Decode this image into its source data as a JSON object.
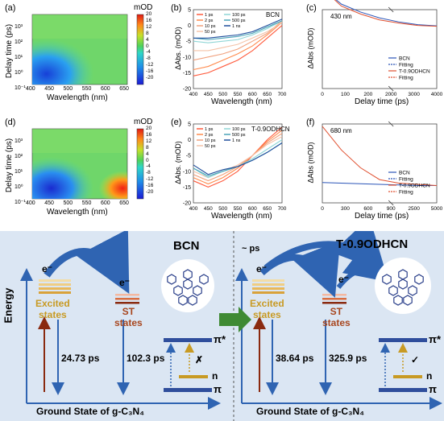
{
  "panels": {
    "a": {
      "label": "(a)",
      "xlabel": "Wavelength (nm)",
      "ylabel": "Delay time (ps)",
      "xticks": [
        "400",
        "450",
        "500",
        "550",
        "600",
        "650"
      ],
      "yticks": [
        "10³",
        "10²",
        "10¹",
        "10⁰",
        "10⁻¹"
      ],
      "cbar_title": "mOD",
      "cbar_ticks": [
        "20",
        "16",
        "12",
        "8",
        "4",
        "0",
        "-4",
        "-8",
        "-12",
        "-16",
        "-20"
      ]
    },
    "b": {
      "label": "(b)",
      "tag": "BCN",
      "xlabel": "Wavelength (nm)",
      "ylabel": "ΔAbs. (mOD)",
      "xticks": [
        "400",
        "450",
        "500",
        "550",
        "600",
        "650",
        "700"
      ],
      "yticks": [
        "5",
        "0",
        "-5",
        "-10",
        "-15",
        "-20"
      ],
      "legend": [
        "1 ps",
        "2 ps",
        "10 ps",
        "50 ps",
        "100 ps",
        "500 ps",
        "1 ns"
      ]
    },
    "c": {
      "label": "(c)",
      "tag": "430 nm",
      "xlabel": "Delay time (ps)",
      "ylabel": "ΔAbs (mOD)",
      "xticks": [
        "0",
        "100",
        "200",
        "2000",
        "3000",
        "4000"
      ],
      "legend": [
        "BCN",
        "Fitting",
        "T-0.9ODHCN",
        "Fitting"
      ]
    },
    "d": {
      "label": "(d)",
      "xlabel": "Wavelength (nm)",
      "ylabel": "Delay time (ps)",
      "xticks": [
        "400",
        "450",
        "500",
        "550",
        "600",
        "650"
      ],
      "yticks": [
        "10³",
        "10²",
        "10¹",
        "10⁰",
        "10⁻¹"
      ],
      "cbar_title": "mOD",
      "cbar_ticks": [
        "20",
        "16",
        "12",
        "8",
        "4",
        "0",
        "-4",
        "-8",
        "-12",
        "-16",
        "-20"
      ]
    },
    "e": {
      "label": "(e)",
      "tag": "T-0.9ODHCN",
      "xlabel": "Wavelength (nm)",
      "ylabel": "ΔAbs. (mOD)",
      "xticks": [
        "400",
        "450",
        "500",
        "550",
        "600",
        "650",
        "700"
      ],
      "yticks": [
        "5",
        "0",
        "-5",
        "-10",
        "-15",
        "-20"
      ],
      "legend": [
        "1 ps",
        "2 ps",
        "10 ps",
        "50 ps",
        "100 ps",
        "500 ps",
        "1 ns"
      ]
    },
    "f": {
      "label": "(f)",
      "tag": "680 nm",
      "xlabel": "Delay time (ps)",
      "ylabel": "ΔAbs (mOD)",
      "xticks": [
        "0",
        "300",
        "600",
        "900",
        "2500",
        "5000"
      ],
      "legend": [
        "BCN",
        "Fitting",
        "T-0.9ODHCN",
        "Fitting"
      ]
    }
  },
  "diagram": {
    "energy": "Energy",
    "left": {
      "title": "BCN",
      "excited": "Excited\nstates",
      "st": "ST\nstates",
      "e": "e⁻",
      "t1": "24.73 ps",
      "t2": "102.3 ps",
      "pistar": "π*",
      "n": "n",
      "pi": "π",
      "mark": "✗",
      "ground": "Ground State of g-C₃N₄"
    },
    "right": {
      "title": "T-0.9ODHCN",
      "prefix": "~ ps",
      "excited": "Excited\nstates",
      "st": "ST\nstates",
      "e": "e⁻",
      "t1": "38.64 ps",
      "t2": "325.9 ps",
      "pistar": "π*",
      "n": "n",
      "pi": "π",
      "mark": "✓",
      "ground": "Ground State of g-C₃N₄"
    }
  },
  "chart_data": [
    {
      "type": "heatmap",
      "panel": "a",
      "xlabel": "Wavelength (nm)",
      "ylabel": "Delay time (ps)",
      "x_range": [
        400,
        700
      ],
      "y_log_range": [
        0.1,
        3000
      ],
      "z_range": [
        -20,
        20
      ],
      "z_label": "mOD"
    },
    {
      "type": "line",
      "panel": "b",
      "tag": "BCN",
      "xlabel": "Wavelength (nm)",
      "ylabel": "ΔAbs. (mOD)",
      "xlim": [
        400,
        700
      ],
      "ylim": [
        -20,
        5
      ],
      "x": [
        400,
        450,
        500,
        550,
        600,
        650,
        700
      ],
      "series": [
        {
          "name": "1 ps",
          "color": "#ff5a3c",
          "values": [
            -16,
            -15,
            -13,
            -11,
            -8,
            -4,
            0
          ]
        },
        {
          "name": "2 ps",
          "color": "#ff8a4c",
          "values": [
            -14,
            -13,
            -11,
            -9,
            -6.5,
            -3,
            1
          ]
        },
        {
          "name": "10 ps",
          "color": "#f0a07c",
          "values": [
            -11,
            -10,
            -9,
            -7.5,
            -5,
            -2.5,
            1.5
          ]
        },
        {
          "name": "50 ps",
          "color": "#f4c3a8",
          "values": [
            -8,
            -8,
            -7,
            -6,
            -4,
            -2,
            1
          ]
        },
        {
          "name": "100 ps",
          "color": "#8fd6d6",
          "values": [
            -5,
            -5.5,
            -5,
            -4.5,
            -3,
            -1,
            1.5
          ]
        },
        {
          "name": "500 ps",
          "color": "#4aa3b8",
          "values": [
            -4,
            -4.5,
            -4,
            -3.5,
            -2.5,
            -0.5,
            1.5
          ]
        },
        {
          "name": "1 ns",
          "color": "#1f4e9c",
          "values": [
            -4,
            -4,
            -3.5,
            -3,
            -2,
            0,
            2
          ]
        }
      ]
    },
    {
      "type": "line",
      "panel": "c",
      "tag": "430 nm",
      "xlabel": "Delay time (ps)",
      "ylabel": "ΔAbs (mOD)",
      "series": [
        {
          "name": "BCN",
          "color": "#2b55b8",
          "x": [
            0,
            5,
            20,
            100,
            200,
            2000,
            4000
          ],
          "values": [
            -1,
            -0.6,
            -0.4,
            -0.25,
            -0.15,
            -0.08,
            -0.05
          ]
        },
        {
          "name": "T-0.9ODHCN",
          "color": "#e05030",
          "x": [
            0,
            5,
            20,
            100,
            200,
            2000,
            4000
          ],
          "values": [
            -1,
            -0.55,
            -0.35,
            -0.2,
            -0.12,
            -0.06,
            -0.04
          ]
        }
      ]
    },
    {
      "type": "heatmap",
      "panel": "d",
      "xlabel": "Wavelength (nm)",
      "ylabel": "Delay time (ps)",
      "x_range": [
        400,
        700
      ],
      "y_log_range": [
        0.1,
        3000
      ],
      "z_range": [
        -20,
        20
      ],
      "z_label": "mOD"
    },
    {
      "type": "line",
      "panel": "e",
      "tag": "T-0.9ODHCN",
      "xlabel": "Wavelength (nm)",
      "ylabel": "ΔAbs. (mOD)",
      "xlim": [
        400,
        700
      ],
      "ylim": [
        -20,
        5
      ],
      "x": [
        400,
        450,
        500,
        550,
        600,
        650,
        700
      ],
      "series": [
        {
          "name": "1 ps",
          "color": "#ff5a3c",
          "values": [
            -13,
            -15,
            -13,
            -10,
            -5,
            0,
            4
          ]
        },
        {
          "name": "2 ps",
          "color": "#ff8a4c",
          "values": [
            -12,
            -14,
            -12,
            -9,
            -5,
            -0.5,
            3
          ]
        },
        {
          "name": "10 ps",
          "color": "#f0a07c",
          "values": [
            -11,
            -13,
            -11,
            -8.5,
            -5,
            -1,
            2
          ]
        },
        {
          "name": "50 ps",
          "color": "#f4c3a8",
          "values": [
            -10,
            -12,
            -10,
            -8,
            -5,
            -1.5,
            1
          ]
        },
        {
          "name": "100 ps",
          "color": "#8fd6d6",
          "values": [
            -9,
            -12,
            -10,
            -8.5,
            -6,
            -3,
            0
          ]
        },
        {
          "name": "500 ps",
          "color": "#4aa3b8",
          "values": [
            -9,
            -11.5,
            -10,
            -8.5,
            -6.5,
            -4,
            -1
          ]
        },
        {
          "name": "1 ns",
          "color": "#1f4e9c",
          "values": [
            -8,
            -11,
            -9.5,
            -8.5,
            -6.5,
            -4,
            -1
          ]
        }
      ]
    },
    {
      "type": "line",
      "panel": "f",
      "tag": "680 nm",
      "xlabel": "Delay time (ps)",
      "ylabel": "ΔAbs (mOD)",
      "series": [
        {
          "name": "BCN",
          "color": "#2b55b8",
          "x": [
            0,
            5,
            20,
            100,
            300,
            900,
            5000
          ],
          "values": [
            0.05,
            0.04,
            0.03,
            0.02,
            0.01,
            0.0,
            0.0
          ]
        },
        {
          "name": "T-0.9ODHCN",
          "color": "#e05030",
          "x": [
            0,
            5,
            20,
            100,
            300,
            900,
            5000
          ],
          "values": [
            1,
            0.6,
            0.3,
            0.1,
            0.04,
            0.02,
            0.0
          ]
        }
      ]
    }
  ],
  "colors": {
    "bg_bottom": "#dbe6f3",
    "arrow_blue": "#2f64b2",
    "gold": "#c89a23",
    "dark_red": "#8a2a10",
    "green_arrow": "#3f8a34"
  }
}
